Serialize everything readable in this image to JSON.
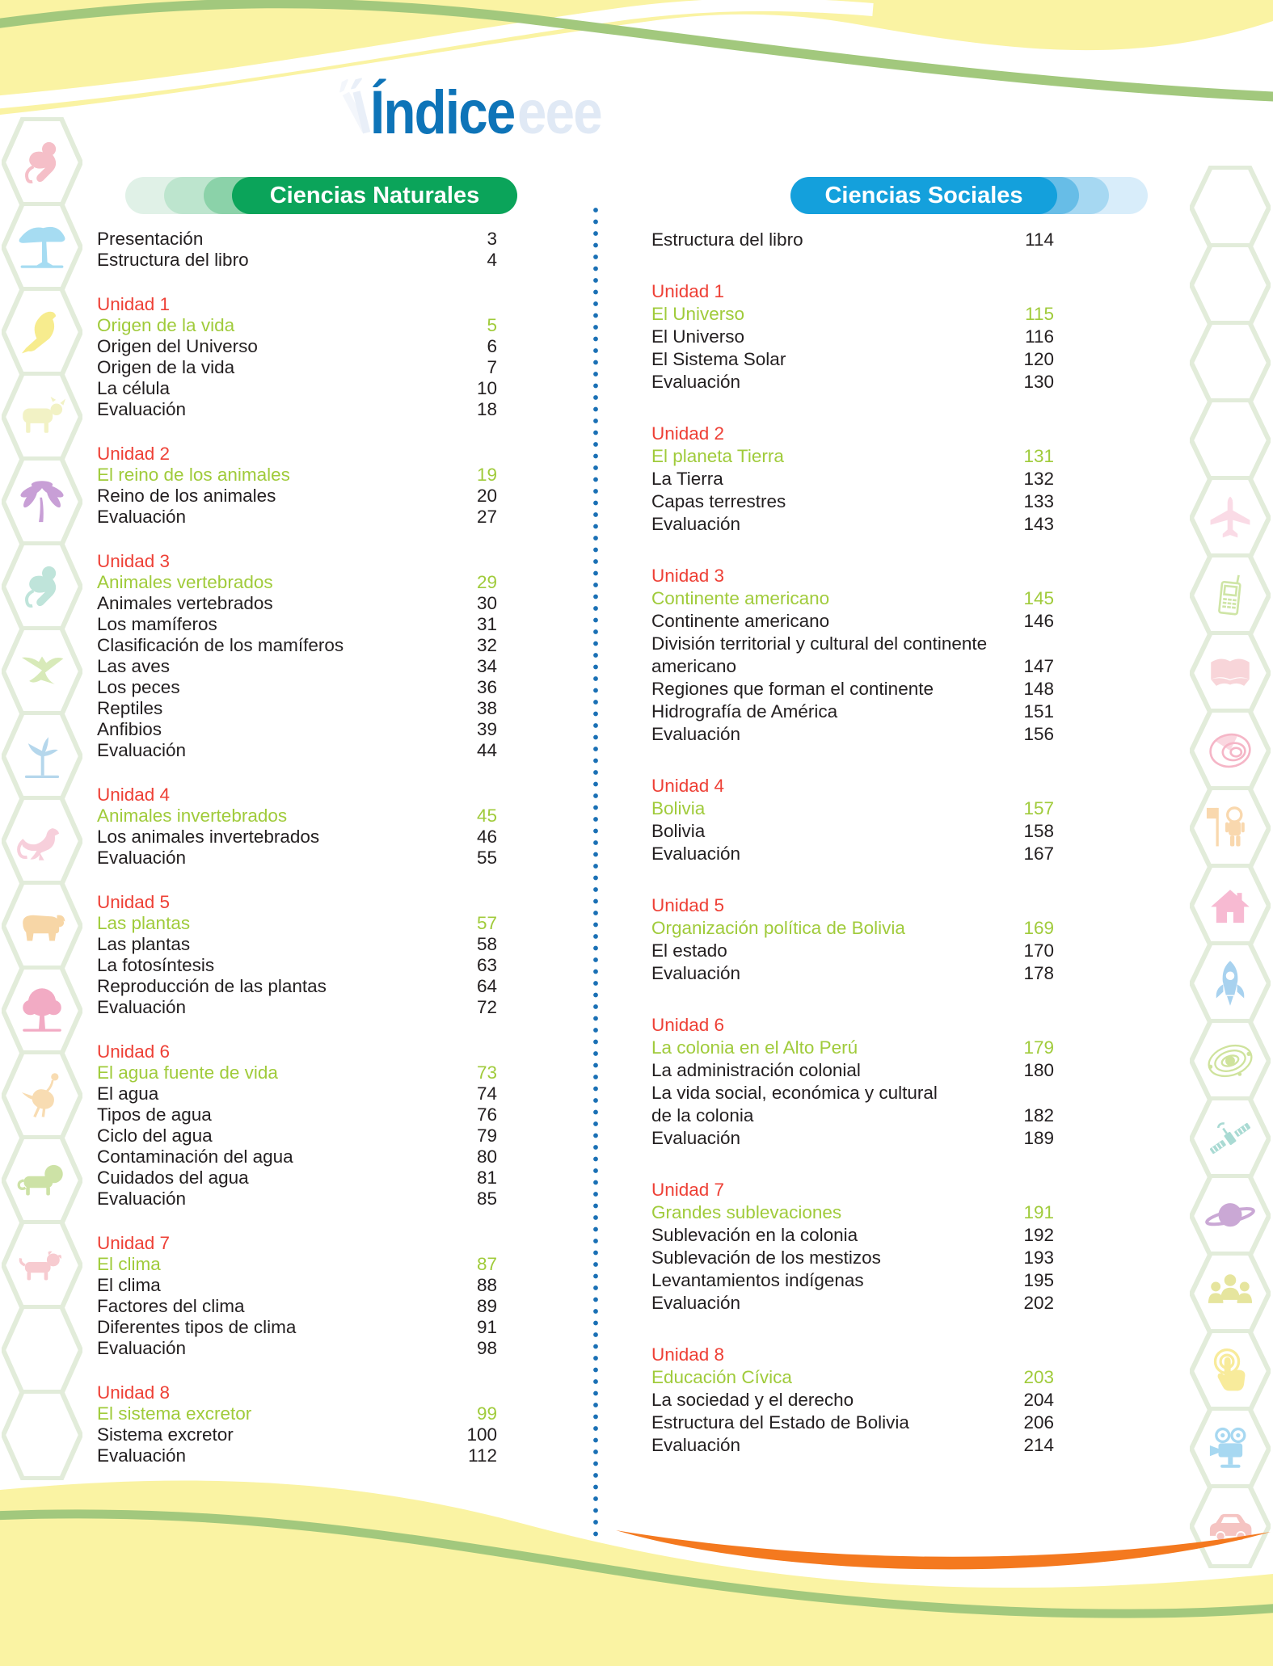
{
  "page": {
    "title": "Índice",
    "title_ghost_suffix": "eee"
  },
  "colors": {
    "title_blue": "#0e74b8",
    "unit_red": "#ee4036",
    "unit_green": "#a0cb3b",
    "text_black": "#231f20",
    "pill_green": "#0ba45a",
    "pill_blue": "#14a0dc",
    "wave_yellow": "#faf3a3",
    "wave_green": "#a2c87d",
    "swoosh_orange": "#f4791f",
    "hex_outline": "#e2ecda",
    "divider_blue": "#1a70b5"
  },
  "columns": [
    {
      "id": "naturales",
      "header": "Ciencias Naturales",
      "intro": [
        {
          "label": "Presentación",
          "page": "3"
        },
        {
          "label": "Estructura del libro",
          "page": "4"
        }
      ],
      "units": [
        {
          "unit": "Unidad 1",
          "title": {
            "label": "Origen de la vida",
            "page": "5"
          },
          "rows": [
            {
              "label": "Origen del Universo",
              "page": "6"
            },
            {
              "label": "Origen de la vida",
              "page": "7"
            },
            {
              "label": "La célula",
              "page": "10"
            },
            {
              "label": "Evaluación",
              "page": "18"
            }
          ]
        },
        {
          "unit": "Unidad 2",
          "title": {
            "label": "El reino de los animales",
            "page": "19"
          },
          "rows": [
            {
              "label": "Reino de los animales",
              "page": "20"
            },
            {
              "label": "Evaluación",
              "page": "27"
            }
          ]
        },
        {
          "unit": "Unidad 3",
          "title": {
            "label": "Animales vertebrados",
            "page": "29"
          },
          "rows": [
            {
              "label": "Animales vertebrados",
              "page": "30"
            },
            {
              "label": "Los mamíferos",
              "page": "31"
            },
            {
              "label": "Clasificación de los mamíferos",
              "page": "32"
            },
            {
              "label": "Las aves",
              "page": "34"
            },
            {
              "label": "Los peces",
              "page": "36"
            },
            {
              "label": "Reptiles",
              "page": "38"
            },
            {
              "label": "Anfibios",
              "page": "39"
            },
            {
              "label": "Evaluación",
              "page": "44"
            }
          ]
        },
        {
          "unit": "Unidad 4",
          "title": {
            "label": "Animales invertebrados",
            "page": "45"
          },
          "rows": [
            {
              "label": "Los animales invertebrados",
              "page": "46"
            },
            {
              "label": "Evaluación",
              "page": "55"
            }
          ]
        },
        {
          "unit": "Unidad 5",
          "title": {
            "label": "Las  plantas",
            "page": "57"
          },
          "rows": [
            {
              "label": "Las plantas",
              "page": "58"
            },
            {
              "label": "La fotosíntesis",
              "page": "63"
            },
            {
              "label": "Reproducción de las plantas",
              "page": "64"
            },
            {
              "label": "Evaluación",
              "page": "72"
            }
          ]
        },
        {
          "unit": "Unidad 6",
          "title": {
            "label": "El agua fuente de vida",
            "page": "73"
          },
          "rows": [
            {
              "label": "El agua",
              "page": "74"
            },
            {
              "label": "Tipos de agua",
              "page": "76"
            },
            {
              "label": "Ciclo del agua",
              "page": "79"
            },
            {
              "label": "Contaminación del agua",
              "page": "80"
            },
            {
              "label": "Cuidados del agua",
              "page": "81"
            },
            {
              "label": "Evaluación",
              "page": "85"
            }
          ]
        },
        {
          "unit": "Unidad 7",
          "title": {
            "label": "El clima",
            "page": "87"
          },
          "rows": [
            {
              "label": "El clima",
              "page": "88"
            },
            {
              "label": "Factores del clima",
              "page": "89"
            },
            {
              "label": "Diferentes tipos de clima",
              "page": "91"
            },
            {
              "label": "Evaluación",
              "page": "98"
            }
          ]
        },
        {
          "unit": "Unidad 8",
          "title": {
            "label": "El sistema excretor",
            "page": "99"
          },
          "rows": [
            {
              "label": "Sistema excretor",
              "page": "100"
            },
            {
              "label": "Evaluación",
              "page": "112"
            }
          ]
        }
      ]
    },
    {
      "id": "sociales",
      "header": "Ciencias Sociales",
      "intro": [
        {
          "label": "Estructura del libro",
          "page": "114"
        }
      ],
      "units": [
        {
          "unit": "Unidad 1",
          "title": {
            "label": "El Universo",
            "page": "115"
          },
          "rows": [
            {
              "label": "El Universo",
              "page": "116"
            },
            {
              "label": "El Sistema Solar",
              "page": "120"
            },
            {
              "label": "Evaluación",
              "page": "130"
            }
          ]
        },
        {
          "unit": "Unidad 2",
          "title": {
            "label": "El planeta Tierra",
            "page": "131"
          },
          "rows": [
            {
              "label": "La Tierra",
              "page": "132"
            },
            {
              "label": "Capas terrestres",
              "page": "133"
            },
            {
              "label": "Evaluación",
              "page": "143"
            }
          ]
        },
        {
          "unit": "Unidad 3",
          "title": {
            "label": "Continente americano",
            "page": "145"
          },
          "rows": [
            {
              "label": "Continente americano",
              "page": "146"
            },
            {
              "label": "División territorial y cultural del continente",
              "label2": "americano",
              "page": "147"
            },
            {
              "label": "Regiones que forman el continente",
              "page": "148"
            },
            {
              "label": "Hidrografía de América",
              "page": "151"
            },
            {
              "label": "Evaluación",
              "page": "156"
            }
          ]
        },
        {
          "unit": "Unidad 4",
          "title": {
            "label": "Bolivia",
            "page": "157"
          },
          "rows": [
            {
              "label": "Bolivia",
              "page": "158"
            },
            {
              "label": "Evaluación",
              "page": "167"
            }
          ]
        },
        {
          "unit": "Unidad 5",
          "title": {
            "label": "Organización política de Bolivia",
            "page": "169"
          },
          "rows": [
            {
              "label": "El estado",
              "page": "170"
            },
            {
              "label": "Evaluación",
              "page": "178"
            }
          ]
        },
        {
          "unit": "Unidad 6",
          "title": {
            "label": "La  colonia en el Alto Perú",
            "page": "179"
          },
          "rows": [
            {
              "label": "La administración colonial",
              "page": "180"
            },
            {
              "label": "La vida social, económica y cultural",
              "label2": "de la colonia",
              "page": "182"
            },
            {
              "label": "Evaluación",
              "page": "189"
            }
          ]
        },
        {
          "unit": "Unidad 7",
          "title": {
            "label": "Grandes sublevaciones",
            "page": "191"
          },
          "rows": [
            {
              "label": "Sublevación en la colonia",
              "page": "192"
            },
            {
              "label": "Sublevación de los mestizos",
              "page": "193"
            },
            {
              "label": "Levantamientos indígenas",
              "page": "195"
            },
            {
              "label": "Evaluación",
              "page": "202"
            }
          ]
        },
        {
          "unit": "Unidad 8",
          "title": {
            "label": "Educación Cívica",
            "page": "203"
          },
          "rows": [
            {
              "label": "La sociedad y el derecho",
              "page": "204"
            },
            {
              "label": "Estructura del Estado de Bolivia",
              "page": "206"
            },
            {
              "label": "Evaluación",
              "page": "214"
            }
          ]
        }
      ]
    }
  ],
  "sidebar_icons": {
    "left": [
      {
        "icon": "monkey-icon",
        "color": "#f5bfc8"
      },
      {
        "icon": "acacia-tree-icon",
        "color": "#a6dcf2"
      },
      {
        "icon": "eagle-icon",
        "color": "#f7ec8e"
      },
      {
        "icon": "cow-icon",
        "color": "#f2f2c5"
      },
      {
        "icon": "palm-tree-icon",
        "color": "#c89fd6"
      },
      {
        "icon": "monkey-icon",
        "color": "#bfe4da"
      },
      {
        "icon": "flying-eagle-icon",
        "color": "#d8eab9"
      },
      {
        "icon": "bare-tree-icon",
        "color": "#b5d7ec"
      },
      {
        "icon": "kangaroo-icon",
        "color": "#f7cfdb"
      },
      {
        "icon": "buffalo-icon",
        "color": "#f7d6a6"
      },
      {
        "icon": "round-tree-icon",
        "color": "#f2abc4"
      },
      {
        "icon": "ostrich-icon",
        "color": "#f8dcb2"
      },
      {
        "icon": "lion-icon",
        "color": "#cde2a6"
      },
      {
        "icon": "dog-icon",
        "color": "#f7cbd0"
      },
      {
        "icon": "",
        "color": ""
      },
      {
        "icon": "",
        "color": ""
      }
    ],
    "right": [
      {
        "icon": "",
        "color": ""
      },
      {
        "icon": "",
        "color": ""
      },
      {
        "icon": "",
        "color": ""
      },
      {
        "icon": "",
        "color": ""
      },
      {
        "icon": "airplane-icon",
        "color": "#fadbe6"
      },
      {
        "icon": "mobile-phone-icon",
        "color": "#cfe5a6"
      },
      {
        "icon": "book-icon",
        "color": "#f8d5d9"
      },
      {
        "icon": "globe-icon",
        "color": "#f5b6c7"
      },
      {
        "icon": "astronaut-icon",
        "color": "#f9d8ae"
      },
      {
        "icon": "house-icon",
        "color": "#f7bad2"
      },
      {
        "icon": "rocket-icon",
        "color": "#a8d2ef"
      },
      {
        "icon": "solar-system-icon",
        "color": "#cfe39d"
      },
      {
        "icon": "satellite-icon",
        "color": "#a9dad3"
      },
      {
        "icon": "saturn-icon",
        "color": "#caa8d5"
      },
      {
        "icon": "people-group-icon",
        "color": "#e6e59e"
      },
      {
        "icon": "touch-icon",
        "color": "#f8eb9b"
      },
      {
        "icon": "video-camera-icon",
        "color": "#a7d8f1"
      },
      {
        "icon": "car-icon",
        "color": "#f5c4c2"
      }
    ]
  }
}
